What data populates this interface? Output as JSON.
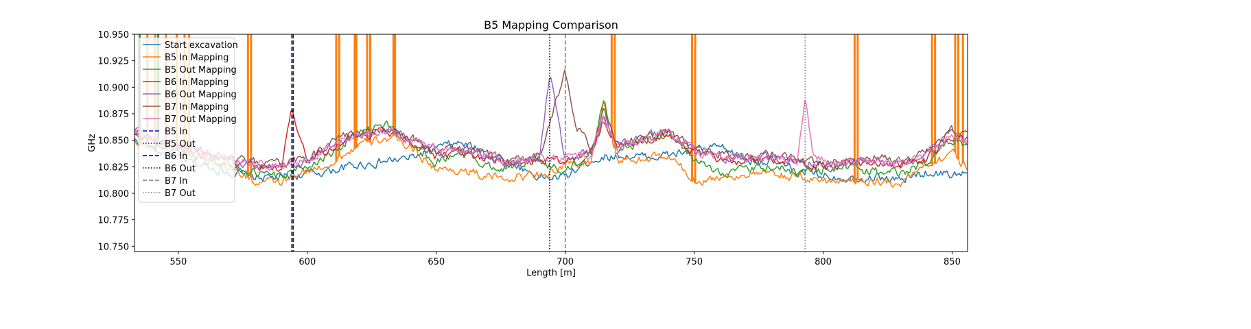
{
  "chart_data": {
    "type": "line",
    "title": "B5 Mapping Comparison",
    "xlabel": "Length [m]",
    "ylabel": "GHz",
    "xlim": [
      533,
      856
    ],
    "ylim": [
      10.745,
      10.95
    ],
    "xticks": [
      550,
      600,
      650,
      700,
      750,
      800,
      850
    ],
    "yticks": [
      10.75,
      10.775,
      10.8,
      10.825,
      10.85,
      10.875,
      10.9,
      10.925,
      10.95
    ],
    "ytick_labels": [
      "10.750",
      "10.775",
      "10.800",
      "10.825",
      "10.850",
      "10.875",
      "10.900",
      "10.925",
      "10.950"
    ],
    "grid": false,
    "legend_position": "upper-left",
    "series": [
      {
        "name": "Start excavation",
        "color": "#1f77b4",
        "x": [
          533,
          540,
          550,
          560,
          570,
          580,
          590,
          600,
          610,
          620,
          630,
          640,
          650,
          660,
          670,
          680,
          690,
          700,
          710,
          720,
          730,
          740,
          750,
          760,
          770,
          780,
          790,
          800,
          810,
          820,
          830,
          840,
          850,
          856
        ],
        "y": [
          10.85,
          10.842,
          10.832,
          10.826,
          10.82,
          10.815,
          10.815,
          10.818,
          10.822,
          10.827,
          10.83,
          10.833,
          10.843,
          10.847,
          10.838,
          10.828,
          10.815,
          10.815,
          10.832,
          10.836,
          10.834,
          10.836,
          10.84,
          10.843,
          10.832,
          10.83,
          10.82,
          10.817,
          10.815,
          10.816,
          10.812,
          10.82,
          10.818,
          10.819
        ]
      },
      {
        "name": "B5 In Mapping",
        "color": "#ff7f0e",
        "x": [
          533,
          540,
          550,
          560,
          570,
          580,
          590,
          600,
          610,
          620,
          630,
          640,
          650,
          660,
          670,
          680,
          690,
          700,
          710,
          715,
          720,
          730,
          740,
          750,
          760,
          770,
          780,
          790,
          800,
          810,
          820,
          830,
          840,
          850,
          856
        ],
        "y": [
          10.85,
          10.845,
          10.84,
          10.835,
          10.825,
          10.81,
          10.81,
          10.82,
          10.83,
          10.845,
          10.852,
          10.845,
          10.822,
          10.822,
          10.815,
          10.815,
          10.818,
          10.825,
          10.83,
          10.888,
          10.83,
          10.832,
          10.835,
          10.812,
          10.815,
          10.818,
          10.818,
          10.815,
          10.812,
          10.813,
          10.812,
          10.81,
          10.828,
          10.838,
          10.824
        ],
        "spikes_x": [
          535,
          538,
          541,
          545,
          549,
          552,
          554,
          577,
          578,
          611,
          612,
          618,
          619,
          623,
          624,
          633,
          634,
          718,
          719,
          749,
          750,
          812,
          813,
          842,
          843,
          851,
          852,
          854
        ]
      },
      {
        "name": "B5 Out Mapping",
        "color": "#2ca02c",
        "x": [
          533,
          540,
          550,
          560,
          570,
          580,
          590,
          600,
          610,
          620,
          630,
          640,
          650,
          660,
          670,
          680,
          690,
          700,
          710,
          715,
          720,
          730,
          740,
          750,
          760,
          770,
          780,
          790,
          800,
          810,
          820,
          830,
          840,
          850,
          856
        ],
        "y": [
          10.855,
          10.845,
          10.84,
          10.833,
          10.826,
          10.818,
          10.818,
          10.825,
          10.84,
          10.858,
          10.865,
          10.85,
          10.83,
          10.838,
          10.826,
          10.825,
          10.832,
          10.82,
          10.838,
          10.888,
          10.842,
          10.848,
          10.856,
          10.83,
          10.82,
          10.822,
          10.825,
          10.82,
          10.822,
          10.825,
          10.82,
          10.818,
          10.83,
          10.852,
          10.845
        ],
        "spikes_x": [
          535,
          542
        ]
      },
      {
        "name": "B6 In Mapping",
        "color": "#d62728",
        "x": [
          533,
          540,
          550,
          560,
          570,
          580,
          590,
          594,
          600,
          610,
          620,
          630,
          640,
          650,
          660,
          670,
          680,
          690,
          700,
          710,
          715,
          720,
          730,
          740,
          750,
          760,
          770,
          780,
          790,
          800,
          810,
          820,
          830,
          840,
          850,
          856
        ],
        "y": [
          10.858,
          10.85,
          10.843,
          10.836,
          10.83,
          10.825,
          10.825,
          10.878,
          10.83,
          10.845,
          10.855,
          10.86,
          10.85,
          10.835,
          10.838,
          10.832,
          10.826,
          10.832,
          10.83,
          10.838,
          10.87,
          10.845,
          10.85,
          10.858,
          10.838,
          10.832,
          10.83,
          10.832,
          10.828,
          10.825,
          10.828,
          10.83,
          10.827,
          10.833,
          10.855,
          10.848
        ]
      },
      {
        "name": "B6 Out Mapping",
        "color": "#9467bd",
        "x": [
          533,
          540,
          550,
          560,
          570,
          580,
          590,
          600,
          610,
          620,
          630,
          640,
          650,
          660,
          670,
          680,
          690,
          694,
          700,
          710,
          715,
          720,
          730,
          740,
          750,
          760,
          770,
          780,
          790,
          800,
          810,
          820,
          830,
          840,
          850,
          856
        ],
        "y": [
          10.86,
          10.852,
          10.844,
          10.838,
          10.832,
          10.826,
          10.826,
          10.83,
          10.845,
          10.856,
          10.86,
          10.852,
          10.84,
          10.84,
          10.834,
          10.828,
          10.834,
          10.912,
          10.832,
          10.84,
          10.873,
          10.845,
          10.852,
          10.858,
          10.84,
          10.834,
          10.832,
          10.834,
          10.83,
          10.828,
          10.83,
          10.832,
          10.828,
          10.836,
          10.857,
          10.85
        ]
      },
      {
        "name": "B7 In Mapping",
        "color": "#8c564b",
        "x": [
          533,
          540,
          550,
          560,
          570,
          580,
          590,
          600,
          610,
          620,
          630,
          640,
          650,
          660,
          670,
          680,
          690,
          700,
          704,
          710,
          715,
          720,
          730,
          740,
          750,
          760,
          770,
          780,
          790,
          800,
          810,
          820,
          830,
          840,
          850,
          856
        ],
        "y": [
          10.858,
          10.851,
          10.845,
          10.839,
          10.833,
          10.828,
          10.828,
          10.832,
          10.848,
          10.858,
          10.86,
          10.853,
          10.84,
          10.843,
          10.836,
          10.83,
          10.836,
          10.914,
          10.865,
          10.84,
          10.876,
          10.846,
          10.852,
          10.86,
          10.841,
          10.836,
          10.834,
          10.836,
          10.832,
          10.828,
          10.831,
          10.834,
          10.829,
          10.837,
          10.86,
          10.852
        ]
      },
      {
        "name": "B7 Out Mapping",
        "color": "#e377c2",
        "x": [
          533,
          540,
          550,
          560,
          570,
          580,
          590,
          600,
          610,
          620,
          630,
          640,
          650,
          660,
          670,
          680,
          690,
          700,
          710,
          715,
          720,
          730,
          740,
          750,
          760,
          770,
          780,
          790,
          793,
          796,
          800,
          810,
          820,
          830,
          840,
          850,
          856
        ],
        "y": [
          10.858,
          10.85,
          10.843,
          10.837,
          10.831,
          10.827,
          10.827,
          10.831,
          10.846,
          10.856,
          10.858,
          10.851,
          10.84,
          10.842,
          10.835,
          10.829,
          10.835,
          10.835,
          10.838,
          10.872,
          10.844,
          10.85,
          10.857,
          10.839,
          10.835,
          10.833,
          10.835,
          10.831,
          10.892,
          10.84,
          10.83,
          10.83,
          10.832,
          10.828,
          10.835,
          10.855,
          10.848
        ]
      }
    ],
    "vlines": [
      {
        "name": "B5 In",
        "x": 594,
        "color": "#0000cc",
        "style": "dashed"
      },
      {
        "name": "B5 Out",
        "x": 694,
        "color": "#0000cc",
        "style": "dotted"
      },
      {
        "name": "B6 In",
        "x": 594.5,
        "color": "#000000",
        "style": "dashed"
      },
      {
        "name": "B6 Out",
        "x": 694,
        "color": "#000000",
        "style": "dotted"
      },
      {
        "name": "B7 In",
        "x": 700,
        "color": "#777777",
        "style": "dashed"
      },
      {
        "name": "B7 Out",
        "x": 793,
        "color": "#777777",
        "style": "dotted"
      }
    ]
  }
}
